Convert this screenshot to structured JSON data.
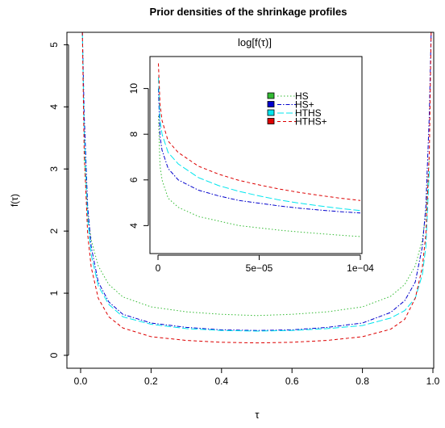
{
  "chart_data": [
    {
      "type": "line",
      "title": "Prior densities of the shrinkage profiles",
      "xlabel": "τ",
      "ylabel": "f(τ)",
      "xlim": [
        0,
        1
      ],
      "ylim": [
        0,
        5.2
      ],
      "xticks": [
        0.0,
        0.2,
        0.4,
        0.6,
        0.8,
        1.0
      ],
      "xtick_labels": [
        "0.0",
        "0.2",
        "0.4",
        "0.6",
        "0.8",
        "1.0"
      ],
      "yticks": [
        0,
        1,
        2,
        3,
        4,
        5
      ],
      "ytick_labels": [
        "0",
        "1",
        "2",
        "3",
        "4",
        "5"
      ],
      "grid": false,
      "series": [
        {
          "name": "HS",
          "color": "#33bb33",
          "dash": "dotted",
          "x": [
            0.01,
            0.02,
            0.03,
            0.05,
            0.08,
            0.12,
            0.2,
            0.3,
            0.4,
            0.5,
            0.6,
            0.7,
            0.8,
            0.88,
            0.92,
            0.95,
            0.97,
            0.98,
            0.99
          ],
          "y": [
            3.2,
            2.28,
            1.86,
            1.44,
            1.14,
            0.94,
            0.78,
            0.7,
            0.66,
            0.64,
            0.66,
            0.7,
            0.78,
            0.95,
            1.14,
            1.44,
            1.86,
            2.28,
            3.2
          ]
        },
        {
          "name": "HS+",
          "color": "#0000cc",
          "dash": "dashdot",
          "x": [
            0.005,
            0.01,
            0.02,
            0.03,
            0.05,
            0.08,
            0.12,
            0.2,
            0.3,
            0.4,
            0.5,
            0.6,
            0.7,
            0.8,
            0.88,
            0.92,
            0.95,
            0.97,
            0.98,
            0.99,
            0.995
          ],
          "y": [
            5.2,
            3.9,
            2.4,
            1.75,
            1.18,
            0.86,
            0.66,
            0.52,
            0.45,
            0.41,
            0.4,
            0.41,
            0.45,
            0.52,
            0.69,
            0.88,
            1.18,
            1.75,
            2.4,
            3.9,
            5.2
          ]
        },
        {
          "name": "HTHS",
          "color": "#00e5ee",
          "dash": "longdash",
          "x": [
            0.005,
            0.01,
            0.02,
            0.03,
            0.05,
            0.08,
            0.12,
            0.2,
            0.3,
            0.4,
            0.5,
            0.6,
            0.7,
            0.8,
            0.88,
            0.92,
            0.95,
            0.97,
            0.98,
            0.99
          ],
          "y": [
            5.2,
            3.6,
            2.2,
            1.62,
            1.12,
            0.82,
            0.62,
            0.5,
            0.43,
            0.4,
            0.39,
            0.4,
            0.43,
            0.48,
            0.6,
            0.72,
            0.92,
            1.3,
            1.75,
            3.0
          ]
        },
        {
          "name": "HTHS+",
          "color": "#dd0000",
          "dash": "dashed",
          "x": [
            0.005,
            0.01,
            0.02,
            0.03,
            0.05,
            0.08,
            0.12,
            0.2,
            0.3,
            0.4,
            0.5,
            0.6,
            0.7,
            0.8,
            0.88,
            0.92,
            0.95,
            0.97,
            0.98,
            0.99,
            0.995
          ],
          "y": [
            5.2,
            3.3,
            1.95,
            1.42,
            0.92,
            0.62,
            0.44,
            0.3,
            0.24,
            0.21,
            0.2,
            0.21,
            0.24,
            0.3,
            0.42,
            0.58,
            0.92,
            1.42,
            1.95,
            3.3,
            5.2
          ]
        }
      ]
    },
    {
      "type": "line",
      "title": "log[f(τ)]",
      "xlim": [
        0,
        0.0001
      ],
      "ylim": [
        3.2,
        11.4
      ],
      "xticks": [
        0,
        5e-05,
        0.0001
      ],
      "xtick_labels": [
        "0",
        "5e−05",
        "1e−04"
      ],
      "yticks": [
        4,
        6,
        8,
        10
      ],
      "ytick_labels": [
        "4",
        "6",
        "8",
        "10"
      ],
      "legend": {
        "position": "top-right",
        "entries": [
          "HS",
          "HS+",
          "HTHS",
          "HTHS+"
        ]
      },
      "series": [
        {
          "name": "HS",
          "color": "#33bb33",
          "dash": "dotted",
          "x": [
            2e-07,
            1e-06,
            2e-06,
            5e-06,
            1e-05,
            2e-05,
            3e-05,
            4e-05,
            5e-05,
            6e-05,
            7e-05,
            8e-05,
            9e-05,
            0.0001
          ],
          "y": [
            8.8,
            6.6,
            6.0,
            5.2,
            4.8,
            4.4,
            4.2,
            4.0,
            3.9,
            3.8,
            3.72,
            3.65,
            3.58,
            3.52
          ]
        },
        {
          "name": "HS+",
          "color": "#0000cc",
          "dash": "dashdot",
          "x": [
            2e-07,
            1e-06,
            2e-06,
            5e-06,
            1e-05,
            2e-05,
            3e-05,
            4e-05,
            5e-05,
            6e-05,
            7e-05,
            8e-05,
            9e-05,
            0.0001
          ],
          "y": [
            10.0,
            7.9,
            7.3,
            6.5,
            6.0,
            5.55,
            5.3,
            5.1,
            4.98,
            4.86,
            4.76,
            4.68,
            4.61,
            4.55
          ]
        },
        {
          "name": "HTHS",
          "color": "#00e5ee",
          "dash": "longdash",
          "x": [
            2e-07,
            1e-06,
            2e-06,
            5e-06,
            1e-05,
            2e-05,
            3e-05,
            4e-05,
            5e-05,
            6e-05,
            7e-05,
            8e-05,
            9e-05,
            0.0001
          ],
          "y": [
            10.5,
            8.6,
            8.0,
            7.2,
            6.7,
            6.1,
            5.75,
            5.5,
            5.3,
            5.12,
            4.98,
            4.86,
            4.75,
            4.66
          ]
        },
        {
          "name": "HTHS+",
          "color": "#dd0000",
          "dash": "dashed",
          "x": [
            2e-07,
            1e-06,
            2e-06,
            5e-06,
            1e-05,
            2e-05,
            3e-05,
            4e-05,
            5e-05,
            6e-05,
            7e-05,
            8e-05,
            9e-05,
            0.0001
          ],
          "y": [
            11.1,
            9.3,
            8.6,
            7.7,
            7.2,
            6.6,
            6.25,
            5.98,
            5.78,
            5.6,
            5.45,
            5.32,
            5.2,
            5.1
          ]
        }
      ]
    }
  ]
}
